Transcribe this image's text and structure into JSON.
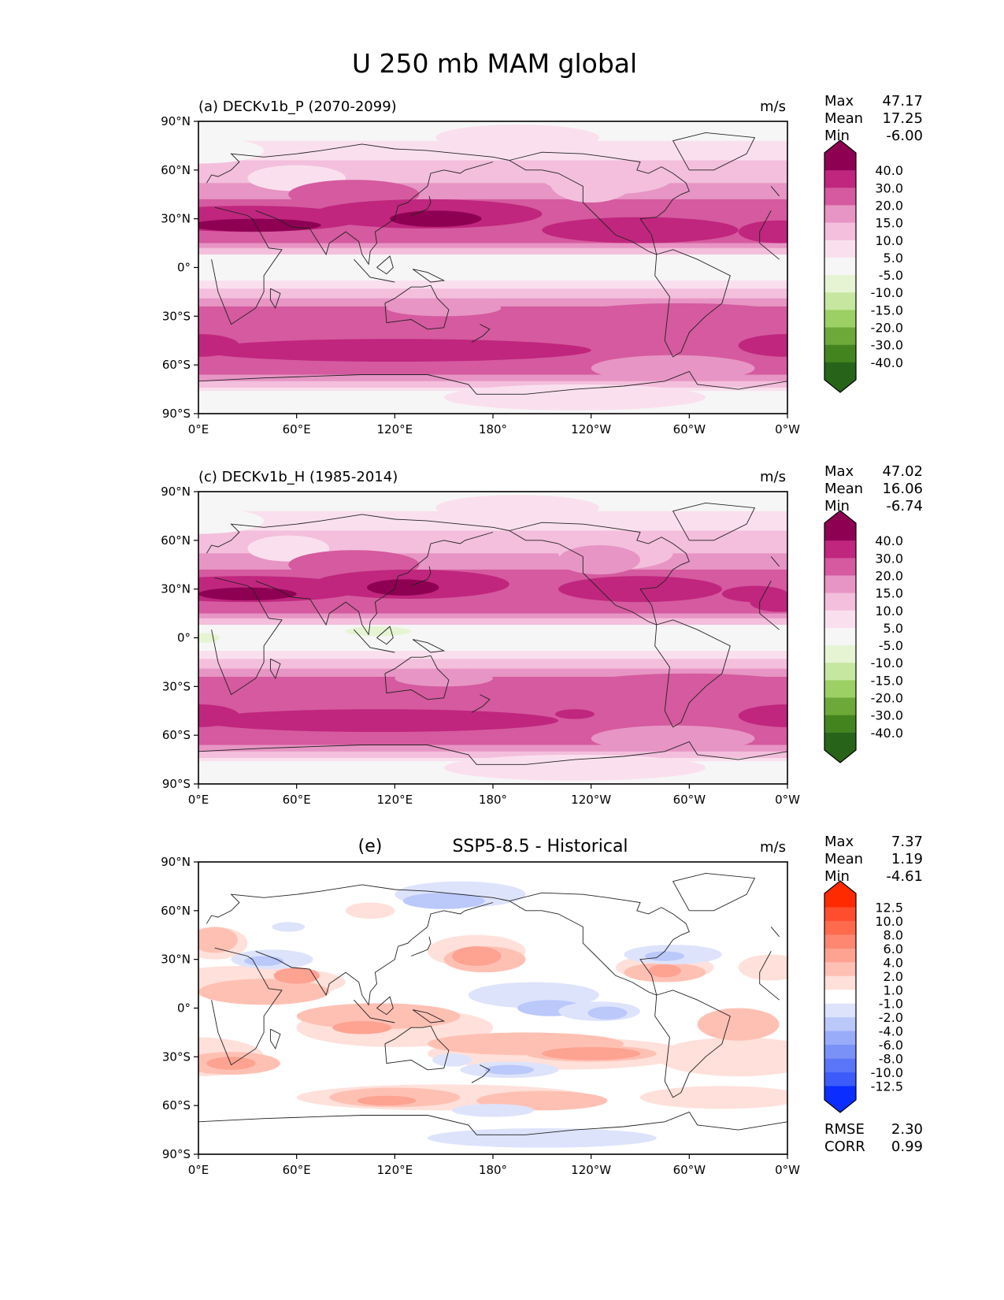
{
  "figure": {
    "title": "U 250 mb MAM global"
  },
  "chart_data": [
    {
      "type": "heatmap",
      "panel_label": "(a)",
      "title": "DECKv1b_P (2070-2099)",
      "units": "m/s",
      "stats": {
        "Max": "47.17",
        "Mean": "17.25",
        "Min": "-6.00"
      },
      "x_ticks": [
        "0°E",
        "60°E",
        "120°E",
        "180°",
        "120°W",
        "60°W",
        "0°W"
      ],
      "y_ticks": [
        "90°N",
        "60°N",
        "30°N",
        "0°",
        "30°S",
        "60°S",
        "90°S"
      ],
      "xlim": [
        0,
        360
      ],
      "ylim": [
        -90,
        90
      ],
      "colorbar": {
        "levels": [
          "40.0",
          "30.0",
          "20.0",
          "15.0",
          "10.0",
          "5.0",
          "-5.0",
          "-10.0",
          "-15.0",
          "-20.0",
          "-30.0",
          "-40.0"
        ],
        "colors": [
          "#8e0152",
          "#c0267e",
          "#d55a9f",
          "#e795c4",
          "#f3bfdc",
          "#fae0ee",
          "#f6f6f6",
          "#e6f4d4",
          "#c6e79f",
          "#9ccf64",
          "#6ca938",
          "#44841f",
          "#276419"
        ],
        "extend": "both"
      },
      "features": "Northern subtropical jet ~25-35°N peaking >40 m/s over N Africa/Arabia and Japan/W Pacific; southern jet ~45-55°S 30-40 m/s; easterlies/weak near equator"
    },
    {
      "type": "heatmap",
      "panel_label": "(c)",
      "title": "DECKv1b_H (1985-2014)",
      "units": "m/s",
      "stats": {
        "Max": "47.02",
        "Mean": "16.06",
        "Min": "-6.74"
      },
      "x_ticks": [
        "0°E",
        "60°E",
        "120°E",
        "180°",
        "120°W",
        "60°W",
        "0°W"
      ],
      "y_ticks": [
        "90°N",
        "60°N",
        "30°N",
        "0°",
        "30°S",
        "60°S",
        "90°S"
      ],
      "xlim": [
        0,
        360
      ],
      "ylim": [
        -90,
        90
      ],
      "colorbar": {
        "levels": [
          "40.0",
          "30.0",
          "20.0",
          "15.0",
          "10.0",
          "5.0",
          "-5.0",
          "-10.0",
          "-15.0",
          "-20.0",
          "-30.0",
          "-40.0"
        ],
        "colors": [
          "#8e0152",
          "#c0267e",
          "#d55a9f",
          "#e795c4",
          "#f3bfdc",
          "#fae0ee",
          "#f6f6f6",
          "#e6f4d4",
          "#c6e79f",
          "#9ccf64",
          "#6ca938",
          "#44841f",
          "#276419"
        ],
        "extend": "both"
      },
      "features": "Similar jet structure; weak easterlies (-5 to -10 m/s) over Maritime Continent and equatorial Atlantic"
    },
    {
      "type": "heatmap",
      "panel_label": "(e)",
      "title": "SSP5-8.5 - Historical",
      "units": "m/s",
      "stats": {
        "Max": "7.37",
        "Mean": "1.19",
        "Min": "-4.61"
      },
      "extra_stats": {
        "RMSE": "2.30",
        "CORR": "0.99"
      },
      "x_ticks": [
        "0°E",
        "60°E",
        "120°E",
        "180°",
        "120°W",
        "60°W",
        "0°W"
      ],
      "y_ticks": [
        "90°N",
        "60°N",
        "30°N",
        "0°",
        "30°S",
        "60°S",
        "90°S"
      ],
      "xlim": [
        0,
        360
      ],
      "ylim": [
        -90,
        90
      ],
      "colorbar": {
        "levels": [
          "12.5",
          "10.0",
          "8.0",
          "6.0",
          "4.0",
          "2.0",
          "1.0",
          "-1.0",
          "-2.0",
          "-4.0",
          "-6.0",
          "-8.0",
          "-10.0",
          "-12.5"
        ],
        "colors": [
          "#ff2a00",
          "#ff4d2e",
          "#ff6a4d",
          "#fd8770",
          "#fea291",
          "#ffc0b4",
          "#ffe0da",
          "#ffffff",
          "#dde3fb",
          "#bac8fa",
          "#99acfa",
          "#7a91f8",
          "#5b75f8",
          "#3d5bfa",
          "#0b2dff"
        ],
        "extend": "both"
      },
      "features": "Positive anomalies (2-6 m/s) in tropical Indian Ocean, subtropical S Pacific, Gulf of Mexico; negative anomalies (-1 to -4 m/s) over N Pacific/Alaska, eastern equatorial Pacific, S Pacific ~40°S"
    }
  ],
  "labels": {
    "stat_max": "Max",
    "stat_mean": "Mean",
    "stat_min": "Min",
    "stat_rmse": "RMSE",
    "stat_corr": "CORR"
  }
}
